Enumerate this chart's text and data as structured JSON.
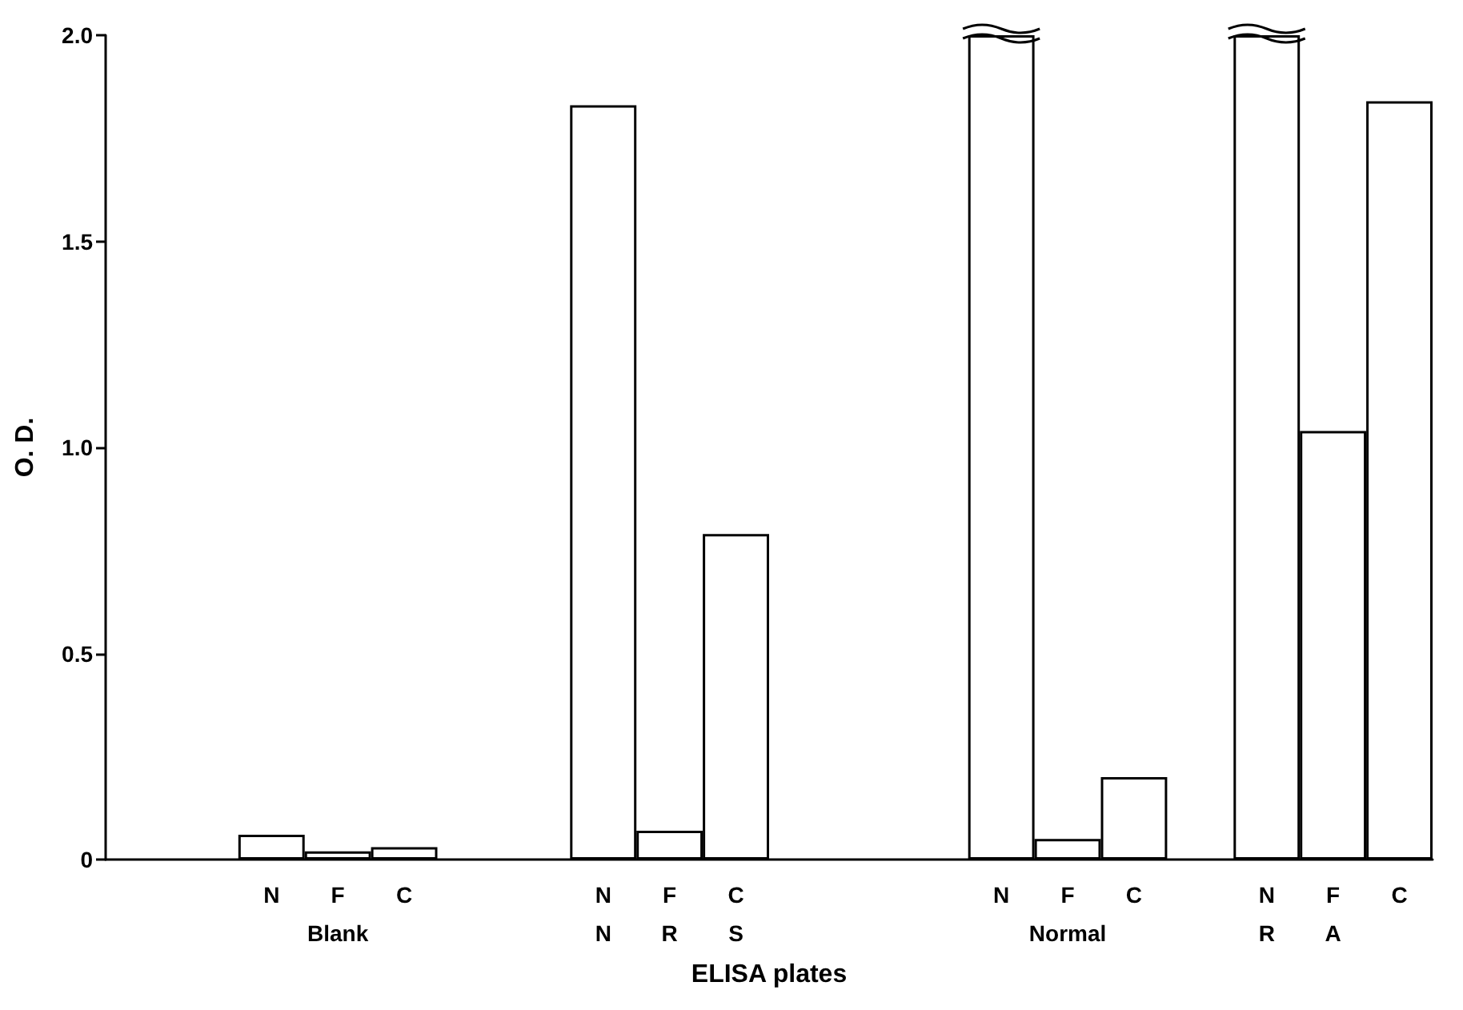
{
  "chart_data": {
    "type": "bar",
    "xlabel": "ELISA plates",
    "ylabel": "O. D.",
    "categories": [
      null,
      null,
      "N",
      "F\nBlank",
      "C",
      null,
      null,
      "N\nN",
      "F\nR",
      "C\nS",
      null,
      null,
      null,
      "N",
      "F\nNormal",
      "C",
      null,
      "N\nR",
      "F\nA",
      "C"
    ],
    "values": [
      null,
      null,
      0.06,
      0.02,
      0.03,
      null,
      null,
      1.83,
      0.07,
      0.79,
      null,
      null,
      null,
      2.0,
      0.05,
      0.2,
      null,
      2.0,
      1.04,
      1.84
    ],
    "color": "#ffffff",
    "ylim": [
      0,
      2.0
    ],
    "yticks": [
      0,
      0.5,
      {
        "value": 1.0,
        "label": "1.0"
      },
      1.5,
      {
        "value": 2.0,
        "label": "2.0"
      }
    ],
    "data_labels": false
  }
}
